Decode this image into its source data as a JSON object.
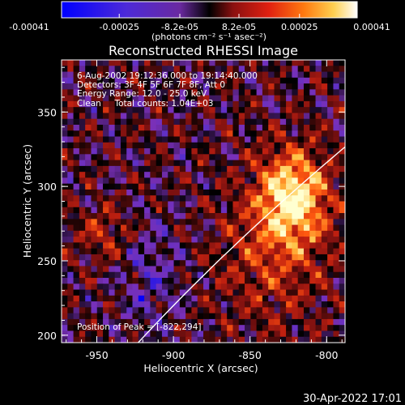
{
  "chart_data": {
    "type": "heatmap",
    "title": "Reconstructed RHESSI Image",
    "xlabel": "Heliocentric X (arcsec)",
    "ylabel": "Heliocentric Y (arcsec)",
    "xlim": [
      -973,
      -788
    ],
    "ylim": [
      195,
      385
    ],
    "x_ticks": [
      "-950",
      "-900",
      "-850",
      "-800"
    ],
    "x_tick_values": [
      -950,
      -900,
      -850,
      -800
    ],
    "y_ticks": [
      "200",
      "250",
      "300",
      "350"
    ],
    "y_tick_values": [
      200,
      250,
      300,
      350
    ],
    "colorbar": {
      "tick_labels": [
        "-0.00041",
        "-0.00025",
        "-8.2e-05",
        "8.2e-05",
        "0.00025",
        "0.00041"
      ],
      "tick_values": [
        -0.00041,
        -0.00025,
        -8.2e-05,
        8.2e-05,
        0.00025,
        0.00041
      ],
      "range": [
        -0.00041,
        0.00041
      ],
      "units_label": "(photons cm⁻² s⁻¹ asec⁻²)"
    },
    "annotations": [
      "6-Aug-2002 19:12:36.000 to 19:14:40.000",
      "Detectors: 3F 4F 5F 6F 7F 8F, Att 0",
      "Energy Range: 12.0 - 25.0 keV",
      "Clean     Total counts: 1.04E+03"
    ],
    "peak_label": "Position of Peak = [-822,294]",
    "peak_position": [
      -822,
      294
    ],
    "limb_color": "#ffffff",
    "palette": [
      "#0000ff",
      "#5a30c8",
      "#7a30b8",
      "#000000",
      "#7a1010",
      "#c02010",
      "#ff5a10",
      "#ffc040",
      "#ffffd0"
    ]
  },
  "footer": {
    "timestamp": "30-Apr-2022 17:01"
  }
}
